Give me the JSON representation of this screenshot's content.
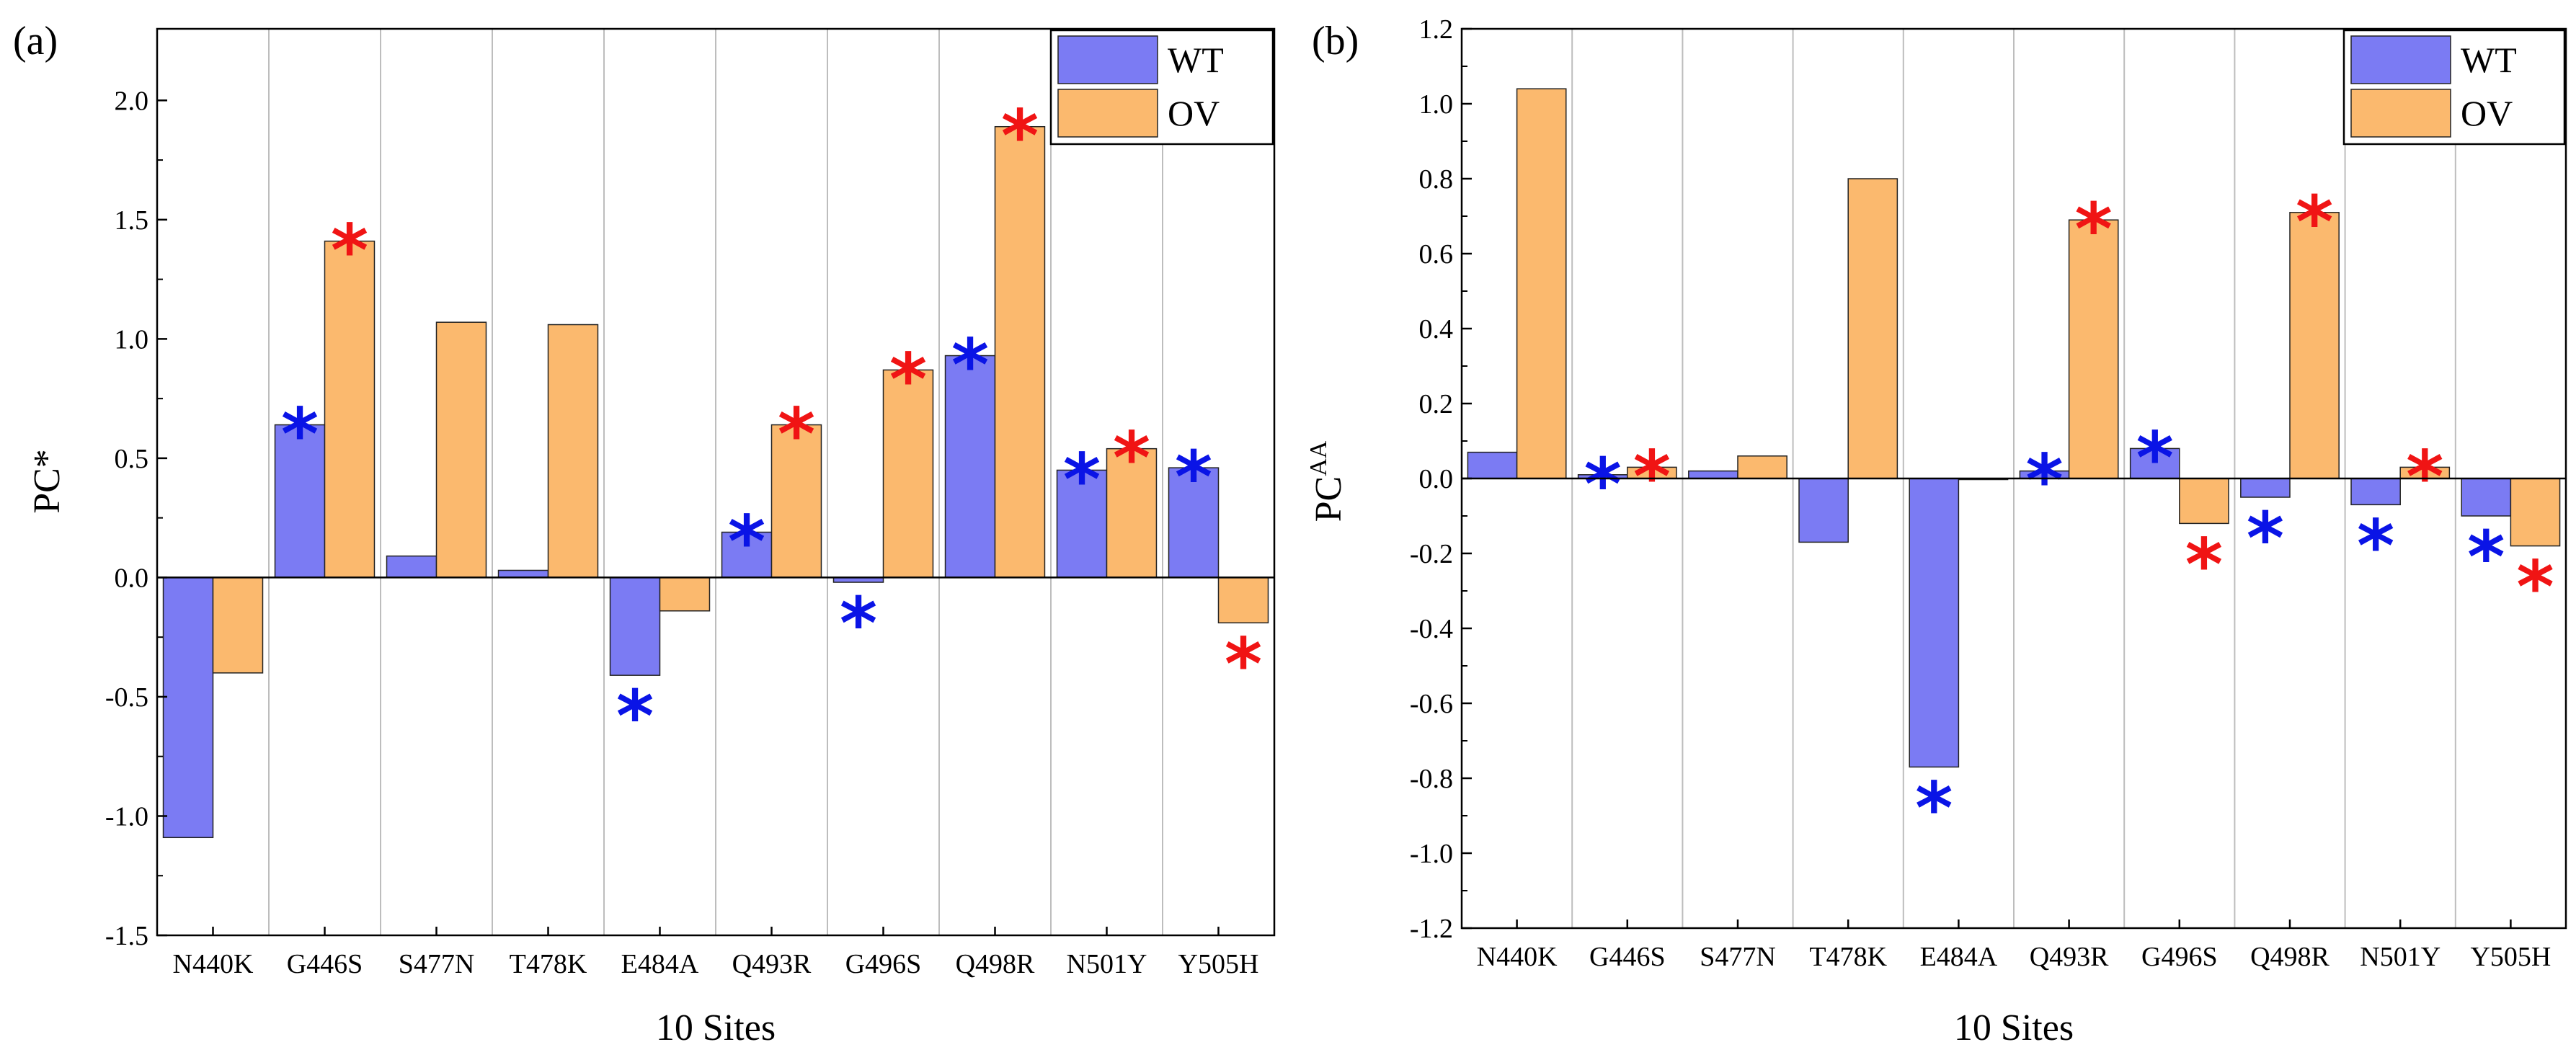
{
  "chart_data": [
    {
      "type": "bar",
      "panel_label": "(a)",
      "ylabel": "PC*",
      "ylabel_sup": "",
      "xlabel": "10 Sites",
      "ylim": [
        -1.5,
        2.3
      ],
      "yticks": [
        -1.5,
        -1.0,
        -0.5,
        0.0,
        0.5,
        1.0,
        1.5,
        2.0
      ],
      "ytick_labels": [
        "-1.5",
        "-1.0",
        "-0.5",
        "0.0",
        "0.5",
        "1.0",
        "1.5",
        "2.0"
      ],
      "grid": true,
      "legend_position": "top-right",
      "categories": [
        "N440K",
        "G446S",
        "S477N",
        "T478K",
        "E484A",
        "Q493R",
        "G496S",
        "Q498R",
        "N501Y",
        "Y505H"
      ],
      "series": [
        {
          "name": "WT",
          "color": "#7B7BF3",
          "values": [
            -1.09,
            0.64,
            0.09,
            0.03,
            -0.41,
            0.19,
            -0.02,
            0.93,
            0.45,
            0.46
          ]
        },
        {
          "name": "OV",
          "color": "#FBB96E",
          "values": [
            -0.4,
            1.41,
            1.07,
            1.06,
            -0.14,
            0.64,
            0.87,
            1.89,
            0.54,
            -0.19
          ]
        }
      ],
      "significance": {
        "symbol": "*",
        "WT": [
          false,
          true,
          false,
          false,
          true,
          true,
          true,
          true,
          true,
          true
        ],
        "OV": [
          false,
          true,
          false,
          false,
          false,
          true,
          true,
          true,
          true,
          true
        ]
      }
    },
    {
      "type": "bar",
      "panel_label": "(b)",
      "ylabel": "PC",
      "ylabel_sup": "AA",
      "xlabel": "10 Sites",
      "ylim": [
        -1.2,
        1.2
      ],
      "yticks": [
        -1.2,
        -1.0,
        -0.8,
        -0.6,
        -0.4,
        -0.2,
        0.0,
        0.2,
        0.4,
        0.6,
        0.8,
        1.0,
        1.2
      ],
      "ytick_labels": [
        "-1.2",
        "-1.0",
        "-0.8",
        "-0.6",
        "-0.4",
        "-0.2",
        "0.0",
        "0.2",
        "0.4",
        "0.6",
        "0.8",
        "1.0",
        "1.2"
      ],
      "grid": true,
      "legend_position": "top-right",
      "categories": [
        "N440K",
        "G446S",
        "S477N",
        "T478K",
        "E484A",
        "Q493R",
        "G496S",
        "Q498R",
        "N501Y",
        "Y505H"
      ],
      "series": [
        {
          "name": "WT",
          "color": "#7B7BF3",
          "values": [
            0.07,
            0.01,
            0.02,
            -0.17,
            -0.77,
            0.02,
            0.08,
            -0.05,
            -0.07,
            -0.1
          ]
        },
        {
          "name": "OV",
          "color": "#FBB96E",
          "values": [
            1.04,
            0.03,
            0.06,
            0.8,
            0.0,
            0.69,
            -0.12,
            0.71,
            0.03,
            -0.18
          ]
        }
      ],
      "significance": {
        "symbol": "*",
        "WT": [
          false,
          true,
          false,
          false,
          true,
          true,
          true,
          true,
          true,
          true
        ],
        "OV": [
          false,
          true,
          false,
          false,
          false,
          true,
          true,
          true,
          true,
          true
        ]
      }
    }
  ],
  "star_colors": {
    "WT": "#0A14E6",
    "OV": "#F01414"
  }
}
